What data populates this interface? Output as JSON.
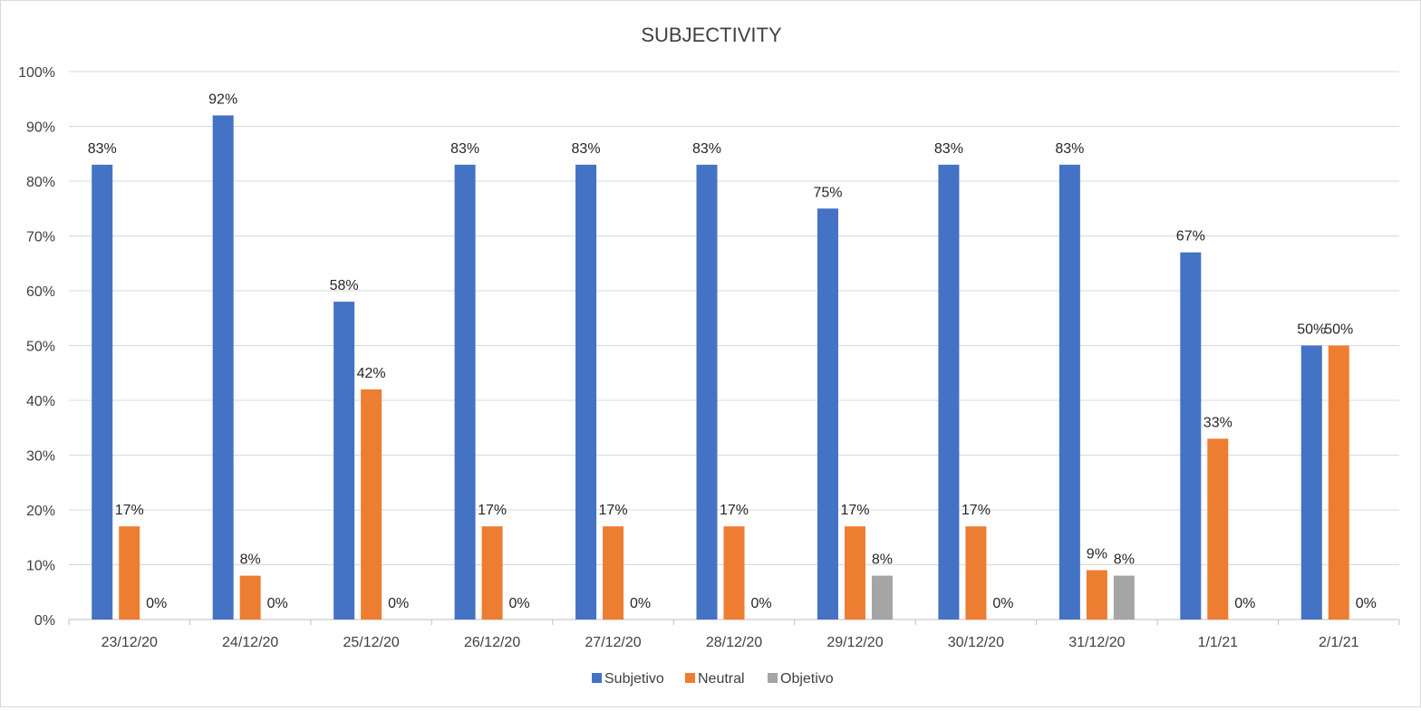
{
  "chart_data": {
    "type": "bar",
    "title": "SUBJECTIVITY",
    "xlabel": "",
    "ylabel": "",
    "ylim": [
      0,
      100
    ],
    "y_ticks": [
      "0%",
      "10%",
      "20%",
      "30%",
      "40%",
      "50%",
      "60%",
      "70%",
      "80%",
      "90%",
      "100%"
    ],
    "categories": [
      "23/12/20",
      "24/12/20",
      "25/12/20",
      "26/12/20",
      "27/12/20",
      "28/12/20",
      "29/12/20",
      "30/12/20",
      "31/12/20",
      "1/1/21",
      "2/1/21"
    ],
    "series": [
      {
        "name": "Subjetivo",
        "color": "#4472c4",
        "values": [
          83,
          92,
          58,
          83,
          83,
          83,
          75,
          83,
          83,
          67,
          50
        ]
      },
      {
        "name": "Neutral",
        "color": "#ed7d31",
        "values": [
          17,
          8,
          42,
          17,
          17,
          17,
          17,
          17,
          9,
          33,
          50
        ]
      },
      {
        "name": "Objetivo",
        "color": "#a5a5a5",
        "values": [
          0,
          0,
          0,
          0,
          0,
          0,
          8,
          0,
          8,
          0,
          0
        ]
      }
    ],
    "data_label_suffix": "%",
    "grid": true,
    "legend_position": "bottom"
  }
}
